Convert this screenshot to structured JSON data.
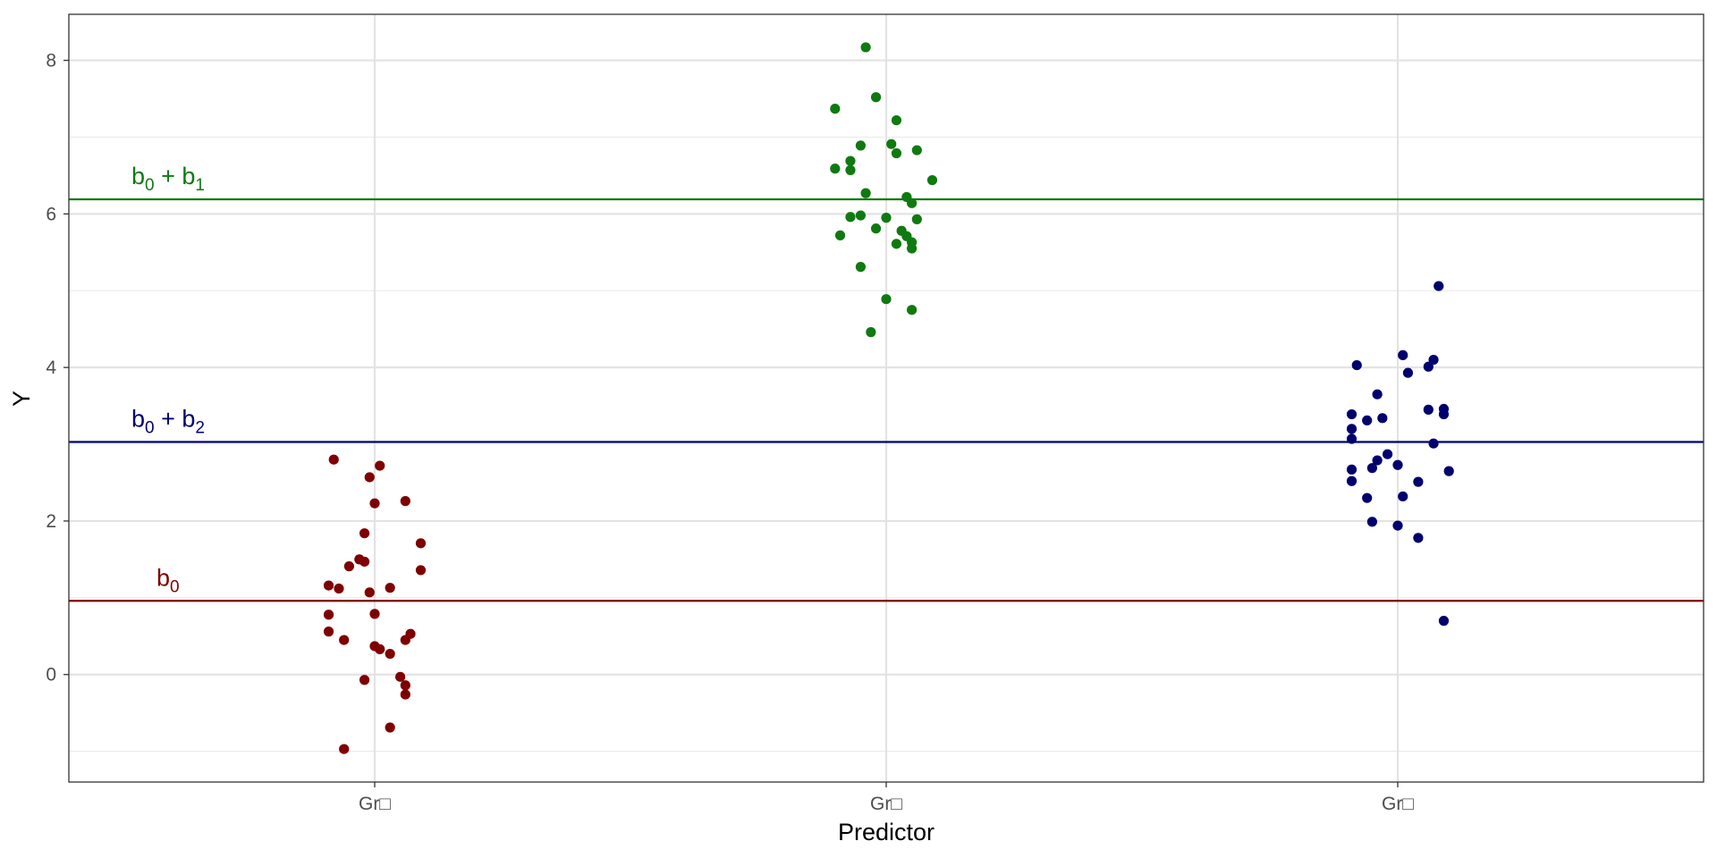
{
  "chart_data": {
    "type": "scatter",
    "title": "",
    "xlabel": "Predictor",
    "ylabel": "Y",
    "ylim": [
      -1.4,
      8.6
    ],
    "yticks": [
      0,
      2,
      4,
      6,
      8
    ],
    "grid": true,
    "categories": [
      "Gr□",
      "Gr□",
      "Gr□"
    ],
    "series": [
      {
        "color": "#7f0000",
        "category_index": 0,
        "points": [
          {
            "dx": -0.08,
            "y": 2.8
          },
          {
            "dx": 0.01,
            "y": 2.72
          },
          {
            "dx": -0.01,
            "y": 2.57
          },
          {
            "dx": -0.0,
            "y": 2.23
          },
          {
            "dx": 0.06,
            "y": 2.26
          },
          {
            "dx": -0.02,
            "y": 1.84
          },
          {
            "dx": 0.09,
            "y": 1.71
          },
          {
            "dx": -0.05,
            "y": 1.41
          },
          {
            "dx": -0.03,
            "y": 1.5
          },
          {
            "dx": -0.02,
            "y": 1.47
          },
          {
            "dx": 0.09,
            "y": 1.36
          },
          {
            "dx": -0.09,
            "y": 1.16
          },
          {
            "dx": -0.07,
            "y": 1.12
          },
          {
            "dx": -0.01,
            "y": 1.07
          },
          {
            "dx": 0.03,
            "y": 1.13
          },
          {
            "dx": 0.0,
            "y": 0.79
          },
          {
            "dx": -0.09,
            "y": 0.78
          },
          {
            "dx": -0.09,
            "y": 0.56
          },
          {
            "dx": -0.06,
            "y": 0.45
          },
          {
            "dx": 0.07,
            "y": 0.53
          },
          {
            "dx": 0.06,
            "y": 0.45
          },
          {
            "dx": -0.0,
            "y": 0.37
          },
          {
            "dx": 0.01,
            "y": 0.33
          },
          {
            "dx": 0.03,
            "y": 0.27
          },
          {
            "dx": -0.02,
            "y": -0.07
          },
          {
            "dx": 0.05,
            "y": -0.03
          },
          {
            "dx": 0.06,
            "y": -0.14
          },
          {
            "dx": 0.06,
            "y": -0.26
          },
          {
            "dx": 0.03,
            "y": -0.69
          },
          {
            "dx": -0.06,
            "y": -0.97
          }
        ]
      },
      {
        "color": "#0f7a0f",
        "category_index": 1,
        "points": [
          {
            "dx": -0.04,
            "y": 8.17
          },
          {
            "dx": -0.02,
            "y": 7.52
          },
          {
            "dx": -0.1,
            "y": 7.37
          },
          {
            "dx": 0.02,
            "y": 7.22
          },
          {
            "dx": -0.05,
            "y": 6.89
          },
          {
            "dx": 0.01,
            "y": 6.91
          },
          {
            "dx": 0.02,
            "y": 6.79
          },
          {
            "dx": 0.06,
            "y": 6.83
          },
          {
            "dx": -0.07,
            "y": 6.69
          },
          {
            "dx": -0.07,
            "y": 6.57
          },
          {
            "dx": -0.1,
            "y": 6.59
          },
          {
            "dx": 0.09,
            "y": 6.44
          },
          {
            "dx": -0.04,
            "y": 6.27
          },
          {
            "dx": 0.04,
            "y": 6.22
          },
          {
            "dx": 0.05,
            "y": 6.14
          },
          {
            "dx": -0.07,
            "y": 5.96
          },
          {
            "dx": -0.05,
            "y": 5.98
          },
          {
            "dx": -0.0,
            "y": 5.95
          },
          {
            "dx": 0.06,
            "y": 5.93
          },
          {
            "dx": -0.02,
            "y": 5.81
          },
          {
            "dx": 0.03,
            "y": 5.78
          },
          {
            "dx": -0.09,
            "y": 5.72
          },
          {
            "dx": 0.04,
            "y": 5.71
          },
          {
            "dx": 0.05,
            "y": 5.63
          },
          {
            "dx": 0.02,
            "y": 5.61
          },
          {
            "dx": 0.05,
            "y": 5.55
          },
          {
            "dx": -0.05,
            "y": 5.31
          },
          {
            "dx": -0.0,
            "y": 4.89
          },
          {
            "dx": 0.05,
            "y": 4.75
          },
          {
            "dx": -0.03,
            "y": 4.46
          }
        ]
      },
      {
        "color": "#00006e",
        "category_index": 2,
        "points": [
          {
            "dx": 0.08,
            "y": 5.06
          },
          {
            "dx": 0.01,
            "y": 4.16
          },
          {
            "dx": 0.07,
            "y": 4.1
          },
          {
            "dx": -0.08,
            "y": 4.03
          },
          {
            "dx": 0.06,
            "y": 4.01
          },
          {
            "dx": 0.02,
            "y": 3.93
          },
          {
            "dx": -0.04,
            "y": 3.65
          },
          {
            "dx": 0.06,
            "y": 3.45
          },
          {
            "dx": 0.09,
            "y": 3.46
          },
          {
            "dx": 0.09,
            "y": 3.39
          },
          {
            "dx": -0.09,
            "y": 3.39
          },
          {
            "dx": -0.06,
            "y": 3.31
          },
          {
            "dx": -0.03,
            "y": 3.34
          },
          {
            "dx": -0.09,
            "y": 3.2
          },
          {
            "dx": -0.09,
            "y": 3.07
          },
          {
            "dx": 0.07,
            "y": 3.01
          },
          {
            "dx": -0.02,
            "y": 2.87
          },
          {
            "dx": -0.04,
            "y": 2.79
          },
          {
            "dx": -0.0,
            "y": 2.73
          },
          {
            "dx": -0.05,
            "y": 2.69
          },
          {
            "dx": -0.09,
            "y": 2.67
          },
          {
            "dx": 0.1,
            "y": 2.65
          },
          {
            "dx": -0.09,
            "y": 2.52
          },
          {
            "dx": 0.04,
            "y": 2.51
          },
          {
            "dx": 0.01,
            "y": 2.32
          },
          {
            "dx": -0.06,
            "y": 2.3
          },
          {
            "dx": -0.05,
            "y": 1.99
          },
          {
            "dx": -0.0,
            "y": 1.94
          },
          {
            "dx": 0.04,
            "y": 1.78
          },
          {
            "dx": 0.09,
            "y": 0.7
          }
        ]
      }
    ],
    "reference_lines": [
      {
        "y": 6.19,
        "color": "#0f7a0f",
        "label_base": "b",
        "label_sub": "0",
        "label_op": " + ",
        "label_base2": "b",
        "label_sub2": "1"
      },
      {
        "y": 3.03,
        "color": "#00006e",
        "label_base": "b",
        "label_sub": "0",
        "label_op": " + ",
        "label_base2": "b",
        "label_sub2": "2"
      },
      {
        "y": 0.96,
        "color": "#7f0000",
        "label_base": "b",
        "label_sub": "0",
        "label_op": "",
        "label_base2": "",
        "label_sub2": ""
      }
    ]
  }
}
